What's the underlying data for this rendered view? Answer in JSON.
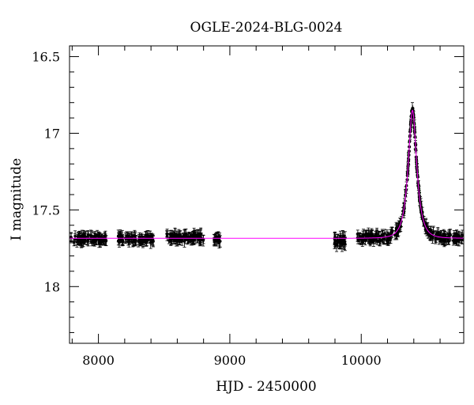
{
  "chart_data": {
    "type": "scatter",
    "title": "OGLE-2024-BLG-0024",
    "xlabel": "HJD - 2450000",
    "ylabel": "I magnitude",
    "xlim": [
      7780,
      10780
    ],
    "ylim": [
      18.37,
      16.43
    ],
    "y_inverted": true,
    "x_ticks": [
      8000,
      9000,
      10000
    ],
    "x_tick_labels": [
      "8000",
      "9000",
      "10000"
    ],
    "y_ticks": [
      16.5,
      17,
      17.5,
      18
    ],
    "y_tick_labels": [
      "16.5",
      "17",
      "17.5",
      "18"
    ],
    "grid": false,
    "legend": "none",
    "colors": {
      "data": "#000000",
      "model": "#ff00ff"
    },
    "observation_seasons": [
      {
        "start": 7790,
        "end": 8060,
        "mag": 17.69,
        "errorbar": 0.03
      },
      {
        "start": 8150,
        "end": 8420,
        "mag": 17.69,
        "errorbar": 0.03
      },
      {
        "start": 8520,
        "end": 8800,
        "mag": 17.68,
        "errorbar": 0.03
      },
      {
        "start": 8880,
        "end": 8930,
        "mag": 17.69,
        "errorbar": 0.03
      },
      {
        "start": 9790,
        "end": 9880,
        "mag": 17.7,
        "errorbar": 0.04
      },
      {
        "start": 9970,
        "end": 10770,
        "mag": 17.68,
        "errorbar": 0.03
      }
    ],
    "model_series": {
      "name": "",
      "baseline_mag": 17.685,
      "peak_time": 10390,
      "peak_mag": 16.85,
      "timescale_days": 55
    }
  }
}
